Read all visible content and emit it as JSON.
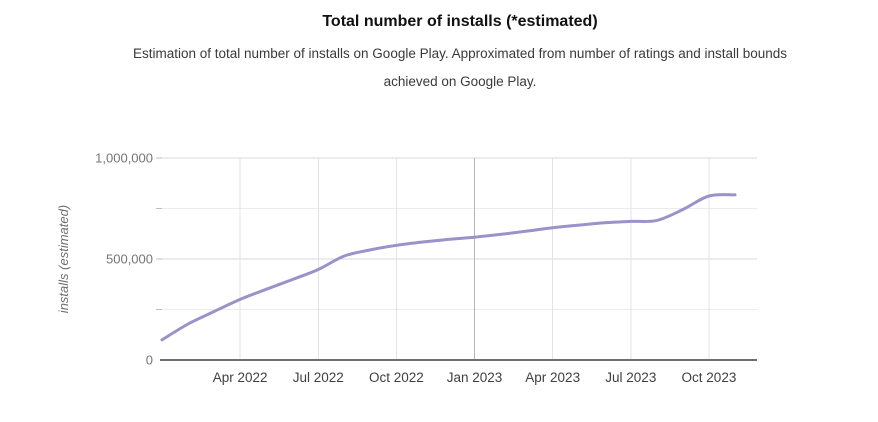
{
  "header": {
    "title": "Total number of installs (*estimated)",
    "subtitle_line1": "Estimation of total number of installs on Google Play. Approximated from number of ratings and install bounds",
    "subtitle_line2": "achieved on Google Play."
  },
  "chart_data": {
    "type": "line",
    "title": "Total number of installs (*estimated)",
    "xlabel": "",
    "ylabel": "installs (estimated)",
    "ylim": [
      0,
      1000000
    ],
    "grid": true,
    "legend": false,
    "x": [
      "Jan 2022",
      "Feb 2022",
      "Mar 2022",
      "Apr 2022",
      "May 2022",
      "Jun 2022",
      "Jul 2022",
      "Aug 2022",
      "Sep 2022",
      "Oct 2022",
      "Nov 2022",
      "Dec 2022",
      "Jan 2023",
      "Feb 2023",
      "Mar 2023",
      "Apr 2023",
      "May 2023",
      "Jun 2023",
      "Jul 2023",
      "Aug 2023",
      "Sep 2023",
      "Oct 2023",
      "Nov 2023"
    ],
    "series": [
      {
        "name": "installs (estimated)",
        "values": [
          100000,
          178000,
          240000,
          300000,
          350000,
          398000,
          448000,
          515000,
          545000,
          568000,
          584000,
          597000,
          608000,
          622000,
          638000,
          655000,
          668000,
          679000,
          686000,
          691000,
          745000,
          812000,
          818000
        ]
      }
    ],
    "x_ticks": [
      {
        "label": "Apr 2022",
        "index": 3,
        "major": false
      },
      {
        "label": "Jul 2022",
        "index": 6,
        "major": false
      },
      {
        "label": "Oct 2022",
        "index": 9,
        "major": false
      },
      {
        "label": "Jan 2023",
        "index": 12,
        "major": true
      },
      {
        "label": "Apr 2023",
        "index": 15,
        "major": false
      },
      {
        "label": "Jul 2023",
        "index": 18,
        "major": false
      },
      {
        "label": "Oct 2023",
        "index": 21,
        "major": false
      }
    ],
    "y_ticks": [
      {
        "value": 0,
        "label": "0"
      },
      {
        "value": 250000,
        "label": ""
      },
      {
        "value": 500000,
        "label": "500,000"
      },
      {
        "value": 750000,
        "label": ""
      },
      {
        "value": 1000000,
        "label": "1,000,000"
      }
    ]
  },
  "colors": {
    "line": "#9a92c8",
    "grid_major": "#d9d9d9",
    "grid_minor": "#ececec",
    "grid_vertical": "#e3e3e3",
    "grid_year": "#b5b5b5",
    "axis": "#6f6f6f",
    "tick_mark": "#bdbdbd",
    "y_tick_label": "#757575",
    "x_tick_label": "#404040",
    "axis_title": "#6e6e6e",
    "title": "#111111",
    "subtitle": "#3a3a3a"
  }
}
